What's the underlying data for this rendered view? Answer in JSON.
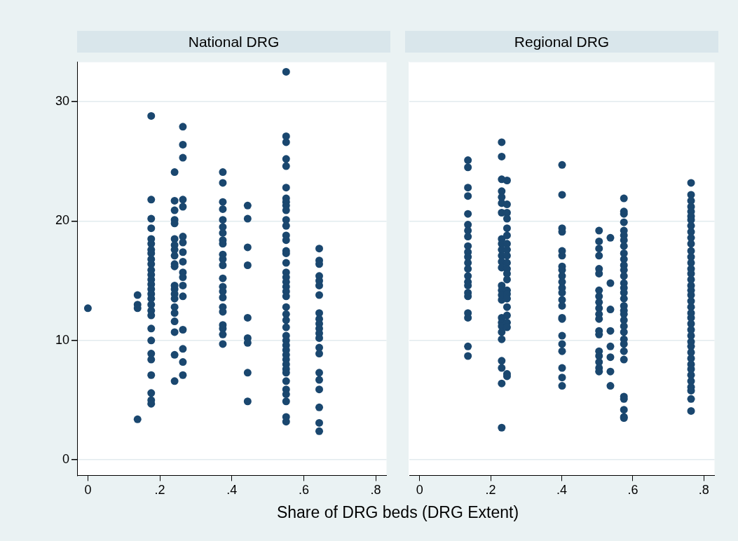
{
  "chart_data": [
    {
      "type": "scatter",
      "title": "National DRG",
      "xlabel": "Share of DRG beds (DRG Extent)",
      "marker": "circle",
      "grid": "y",
      "xlim": [
        -0.03,
        0.83
      ],
      "ylim": [
        -1.3,
        33.3
      ],
      "xticks": [
        0,
        {
          "value": 0.2,
          "label": ".2"
        },
        {
          "value": 0.4,
          "label": ".4"
        },
        {
          "value": 0.6,
          "label": ".6"
        },
        {
          "value": 0.8,
          "label": ".8"
        }
      ],
      "yticks": [
        0,
        10,
        20,
        30
      ],
      "series": [
        {
          "color": "#1a476f",
          "x": [
            0,
            0.138,
            0.138,
            0.138,
            0.138,
            0.176,
            0.176,
            0.176,
            0.176,
            0.176,
            0.176,
            0.176,
            0.176,
            0.176,
            0.176,
            0.176,
            0.176,
            0.176,
            0.176,
            0.176,
            0.176,
            0.176,
            0.176,
            0.176,
            0.176,
            0.176,
            0.176,
            0.176,
            0.176,
            0.176,
            0.176,
            0.176,
            0.176,
            0.241,
            0.241,
            0.241,
            0.241,
            0.241,
            0.241,
            0.241,
            0.241,
            0.241,
            0.241,
            0.241,
            0.241,
            0.241,
            0.241,
            0.241,
            0.241,
            0.241,
            0.241,
            0.241,
            0.241,
            0.241,
            0.264,
            0.264,
            0.264,
            0.264,
            0.264,
            0.264,
            0.264,
            0.264,
            0.264,
            0.264,
            0.264,
            0.264,
            0.264,
            0.264,
            0.264,
            0.264,
            0.264,
            0.375,
            0.375,
            0.375,
            0.375,
            0.375,
            0.375,
            0.375,
            0.375,
            0.375,
            0.375,
            0.375,
            0.375,
            0.375,
            0.375,
            0.375,
            0.375,
            0.375,
            0.375,
            0.375,
            0.375,
            0.375,
            0.375,
            0.444,
            0.444,
            0.444,
            0.444,
            0.444,
            0.444,
            0.444,
            0.444,
            0.444,
            0.551,
            0.551,
            0.551,
            0.551,
            0.551,
            0.551,
            0.551,
            0.551,
            0.551,
            0.551,
            0.551,
            0.551,
            0.551,
            0.551,
            0.551,
            0.551,
            0.551,
            0.551,
            0.551,
            0.551,
            0.551,
            0.551,
            0.551,
            0.551,
            0.551,
            0.551,
            0.551,
            0.551,
            0.551,
            0.551,
            0.551,
            0.551,
            0.551,
            0.551,
            0.551,
            0.551,
            0.551,
            0.551,
            0.551,
            0.551,
            0.551,
            0.551,
            0.643,
            0.643,
            0.643,
            0.643,
            0.643,
            0.643,
            0.643,
            0.643,
            0.643,
            0.643,
            0.643,
            0.643,
            0.643,
            0.643,
            0.643,
            0.643,
            0.643,
            0.643,
            0.643,
            0.643,
            0.643
          ],
          "values": [
            12.7,
            13.8,
            13.0,
            12.7,
            3.4,
            28.8,
            21.8,
            20.2,
            19.4,
            18.5,
            18.1,
            17.6,
            17.3,
            16.8,
            16.4,
            15.9,
            15.5,
            15.1,
            14.7,
            14.3,
            13.9,
            13.5,
            13.0,
            12.5,
            12.1,
            11.0,
            10.0,
            8.9,
            8.4,
            7.1,
            5.6,
            5.0,
            4.7,
            24.1,
            21.7,
            20.9,
            20.1,
            19.8,
            18.5,
            18.0,
            17.6,
            17.1,
            16.4,
            16.2,
            14.6,
            14.3,
            13.9,
            13.5,
            12.8,
            12.3,
            11.6,
            10.7,
            8.8,
            6.6,
            27.9,
            26.4,
            25.3,
            21.8,
            21.2,
            18.7,
            18.2,
            17.4,
            16.6,
            15.7,
            15.3,
            14.6,
            13.7,
            10.9,
            9.3,
            8.2,
            7.1,
            24.1,
            23.2,
            21.6,
            21.0,
            20.1,
            19.5,
            19.0,
            18.4,
            18.1,
            17.2,
            16.8,
            16.3,
            15.2,
            14.5,
            14.1,
            13.6,
            12.8,
            12.4,
            11.3,
            11.0,
            10.5,
            9.7,
            21.3,
            20.2,
            17.8,
            16.3,
            11.9,
            10.2,
            9.8,
            7.3,
            4.9,
            32.5,
            27.1,
            26.6,
            25.2,
            24.6,
            22.8,
            21.9,
            21.6,
            21.3,
            20.9,
            20.1,
            19.6,
            18.8,
            18.4,
            17.5,
            17.3,
            16.5,
            15.7,
            15.3,
            14.9,
            14.5,
            14.1,
            13.7,
            12.8,
            12.2,
            11.7,
            11.1,
            10.4,
            10.0,
            9.6,
            9.2,
            8.8,
            8.4,
            8.0,
            7.6,
            7.3,
            6.6,
            5.9,
            5.5,
            4.9,
            3.6,
            3.2,
            17.7,
            16.7,
            16.4,
            15.4,
            15.0,
            14.6,
            13.8,
            12.3,
            11.8,
            11.4,
            11.0,
            10.6,
            10.2,
            9.4,
            8.9,
            7.3,
            6.7,
            5.9,
            4.4,
            3.1,
            2.4
          ]
        }
      ]
    },
    {
      "type": "scatter",
      "title": "Regional DRG",
      "marker": "circle",
      "grid": "y",
      "tick_labels": "x",
      "xlim": [
        -0.03,
        0.83
      ],
      "ylim": [
        -1.3,
        33.3
      ],
      "xticks": [
        0,
        {
          "value": 0.2,
          "label": ".2"
        },
        {
          "value": 0.4,
          "label": ".4"
        },
        {
          "value": 0.6,
          "label": ".6"
        },
        {
          "value": 0.8,
          "label": ".8"
        }
      ],
      "yticks": [
        0,
        10,
        20,
        30
      ],
      "series": [
        {
          "color": "#1a476f",
          "x": [
            0.136,
            0.136,
            0.136,
            0.136,
            0.136,
            0.136,
            0.136,
            0.136,
            0.136,
            0.136,
            0.136,
            0.136,
            0.136,
            0.136,
            0.136,
            0.136,
            0.136,
            0.136,
            0.136,
            0.136,
            0.136,
            0.136,
            0.231,
            0.231,
            0.231,
            0.231,
            0.231,
            0.231,
            0.231,
            0.231,
            0.231,
            0.231,
            0.231,
            0.231,
            0.231,
            0.231,
            0.231,
            0.231,
            0.231,
            0.231,
            0.231,
            0.231,
            0.231,
            0.231,
            0.231,
            0.231,
            0.231,
            0.231,
            0.246,
            0.246,
            0.246,
            0.246,
            0.246,
            0.246,
            0.246,
            0.246,
            0.246,
            0.246,
            0.246,
            0.246,
            0.246,
            0.246,
            0.246,
            0.246,
            0.246,
            0.246,
            0.246,
            0.246,
            0.246,
            0.246,
            0.401,
            0.401,
            0.401,
            0.401,
            0.401,
            0.401,
            0.401,
            0.401,
            0.401,
            0.401,
            0.401,
            0.401,
            0.401,
            0.401,
            0.401,
            0.401,
            0.401,
            0.401,
            0.401,
            0.401,
            0.401,
            0.401,
            0.505,
            0.505,
            0.505,
            0.505,
            0.505,
            0.505,
            0.505,
            0.505,
            0.505,
            0.505,
            0.505,
            0.505,
            0.505,
            0.505,
            0.505,
            0.505,
            0.505,
            0.505,
            0.505,
            0.537,
            0.537,
            0.537,
            0.537,
            0.537,
            0.537,
            0.537,
            0.537,
            0.575,
            0.575,
            0.575,
            0.575,
            0.575,
            0.575,
            0.575,
            0.575,
            0.575,
            0.575,
            0.575,
            0.575,
            0.575,
            0.575,
            0.575,
            0.575,
            0.575,
            0.575,
            0.575,
            0.575,
            0.575,
            0.575,
            0.575,
            0.575,
            0.575,
            0.575,
            0.575,
            0.575,
            0.575,
            0.575,
            0.575,
            0.575,
            0.764,
            0.764,
            0.764,
            0.764,
            0.764,
            0.764,
            0.764,
            0.764,
            0.764,
            0.764,
            0.764,
            0.764,
            0.764,
            0.764,
            0.764,
            0.764,
            0.764,
            0.764,
            0.764,
            0.764,
            0.764,
            0.764,
            0.764,
            0.764,
            0.764,
            0.764,
            0.764,
            0.764,
            0.764,
            0.764,
            0.764,
            0.764,
            0.764,
            0.764,
            0.764,
            0.764,
            0.764,
            0.764,
            0.764
          ],
          "values": [
            25.1,
            24.5,
            22.8,
            22.1,
            20.6,
            19.7,
            19.2,
            18.7,
            17.9,
            17.4,
            17.0,
            16.5,
            16.0,
            15.4,
            14.9,
            14.6,
            14.0,
            13.7,
            12.3,
            11.9,
            9.5,
            8.7,
            26.6,
            25.4,
            23.5,
            22.5,
            22.0,
            21.5,
            20.7,
            18.5,
            18.1,
            17.6,
            17.1,
            16.6,
            16.1,
            14.6,
            14.2,
            13.8,
            13.4,
            11.9,
            11.5,
            11.2,
            10.7,
            10.1,
            8.3,
            7.7,
            6.4,
            2.7,
            23.4,
            21.4,
            20.7,
            20.2,
            19.4,
            18.8,
            18.1,
            17.6,
            17.1,
            16.5,
            16.0,
            15.6,
            15.1,
            14.2,
            13.9,
            13.5,
            12.8,
            12.1,
            11.5,
            11.1,
            7.2,
            7.0,
            24.7,
            22.2,
            19.4,
            19.1,
            17.5,
            17.1,
            16.2,
            15.9,
            15.4,
            14.9,
            14.4,
            14.0,
            13.4,
            12.9,
            11.9,
            11.8,
            10.4,
            9.7,
            9.1,
            7.7,
            6.9,
            6.2,
            19.2,
            18.3,
            17.7,
            17.1,
            16.0,
            15.6,
            14.2,
            13.7,
            13.2,
            12.7,
            12.2,
            11.8,
            10.8,
            10.5,
            9.1,
            8.7,
            8.2,
            7.7,
            7.4,
            18.6,
            14.8,
            12.6,
            10.8,
            9.5,
            8.6,
            7.4,
            6.2,
            21.9,
            20.8,
            20.6,
            19.9,
            19.2,
            18.8,
            18.4,
            17.9,
            17.3,
            16.8,
            16.3,
            15.9,
            15.4,
            14.8,
            14.4,
            14.0,
            13.5,
            12.9,
            12.5,
            12.2,
            11.7,
            11.2,
            10.7,
            10.1,
            9.7,
            9.1,
            8.4,
            5.3,
            5.1,
            4.2,
            3.6,
            3.5,
            23.2,
            22.2,
            21.7,
            21.2,
            20.8,
            20.4,
            20.1,
            19.6,
            19.1,
            18.6,
            18.1,
            17.5,
            17.0,
            16.5,
            16.0,
            15.6,
            15.1,
            14.6,
            14.2,
            13.8,
            13.3,
            12.8,
            12.3,
            11.9,
            11.4,
            10.9,
            10.4,
            9.9,
            9.5,
            9.0,
            8.5,
            8.0,
            7.6,
            7.1,
            6.6,
            6.1,
            5.8,
            5.1,
            4.1
          ]
        }
      ]
    }
  ]
}
